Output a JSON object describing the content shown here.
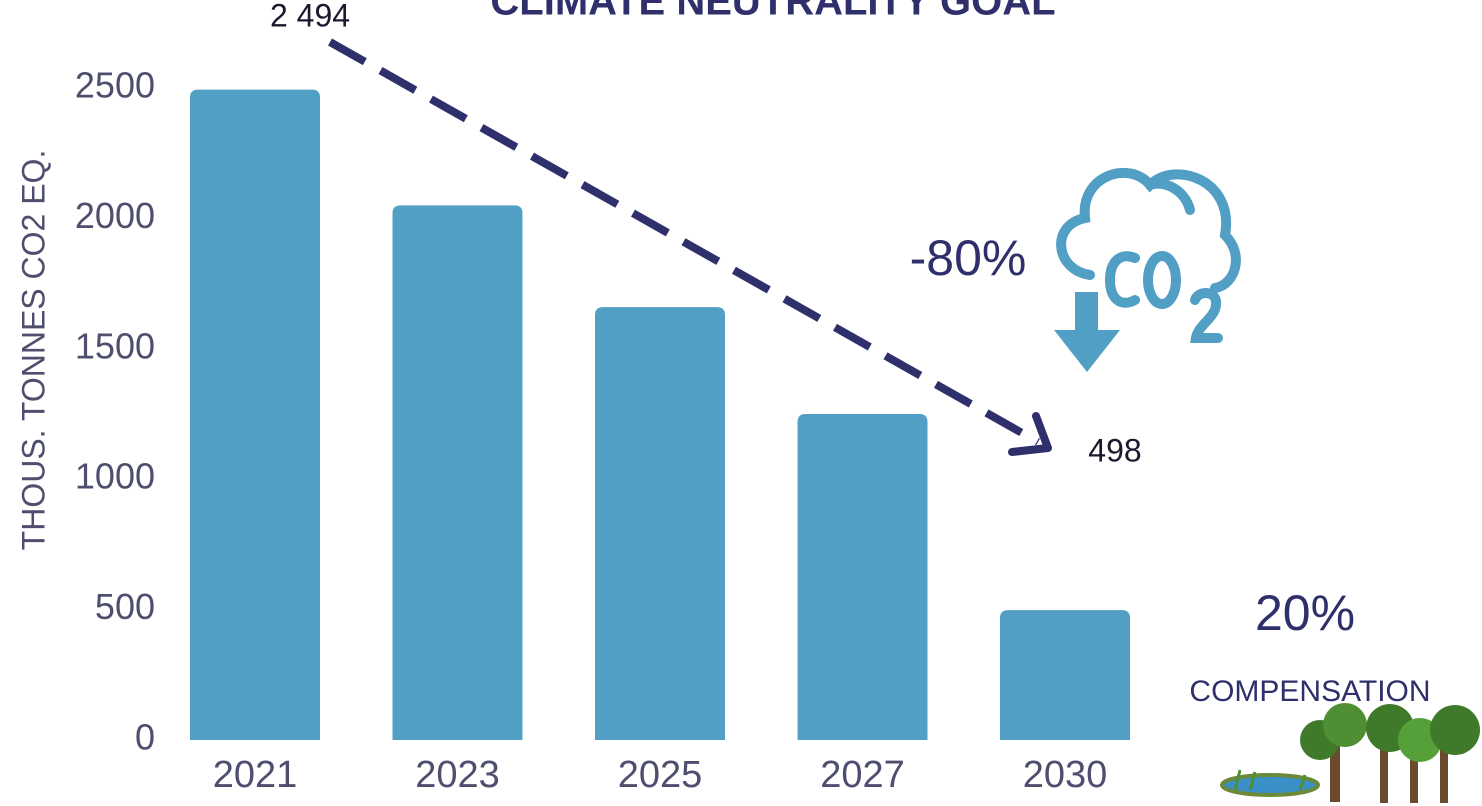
{
  "chart_data": {
    "type": "bar",
    "title": "CLIMATE NEUTRALITY GOAL",
    "y_label": "THOUS. TONNES CO2 EQ.",
    "categories": [
      "2021",
      "2023",
      "2025",
      "2027",
      "2030"
    ],
    "values": [
      2494,
      2050,
      1660,
      1250,
      498
    ],
    "value_labels": [
      "2 494",
      null,
      null,
      null,
      "498"
    ],
    "color": "#529fc5",
    "ylim": [
      0,
      2500
    ],
    "yticks": [
      0,
      500,
      1000,
      1500,
      2000,
      2500
    ],
    "grid": false,
    "annotations": [
      "-80%",
      "20%",
      "COMPENSATION"
    ]
  }
}
